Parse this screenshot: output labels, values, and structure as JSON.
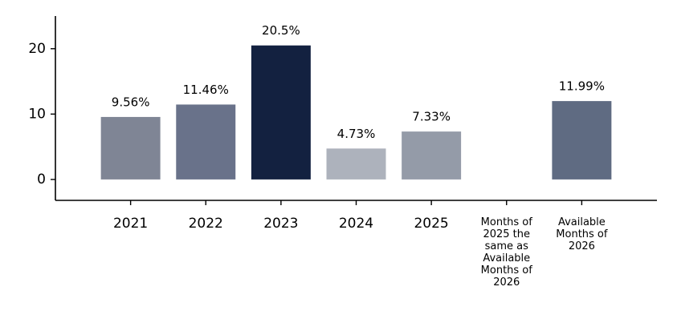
{
  "chart_data": {
    "type": "bar",
    "categories": [
      "2021",
      "2022",
      "2023",
      "2024",
      "2025",
      "Months of 2025 the same as Available Months of 2026",
      "Available Months of 2026"
    ],
    "values": [
      9.56,
      11.46,
      20.5,
      4.73,
      7.33,
      null,
      11.99
    ],
    "value_labels": [
      "9.56%",
      "11.46%",
      "20.5%",
      "4.73%",
      "7.33%",
      null,
      "11.99%"
    ],
    "colors": [
      "#7f8595",
      "#69728a",
      "#132140",
      "#adb2bc",
      "#949ba8",
      null,
      "#5f6b82"
    ],
    "ylim": [
      -3.2,
      25
    ],
    "yticks": [
      0,
      10,
      20
    ],
    "grid": false
  }
}
